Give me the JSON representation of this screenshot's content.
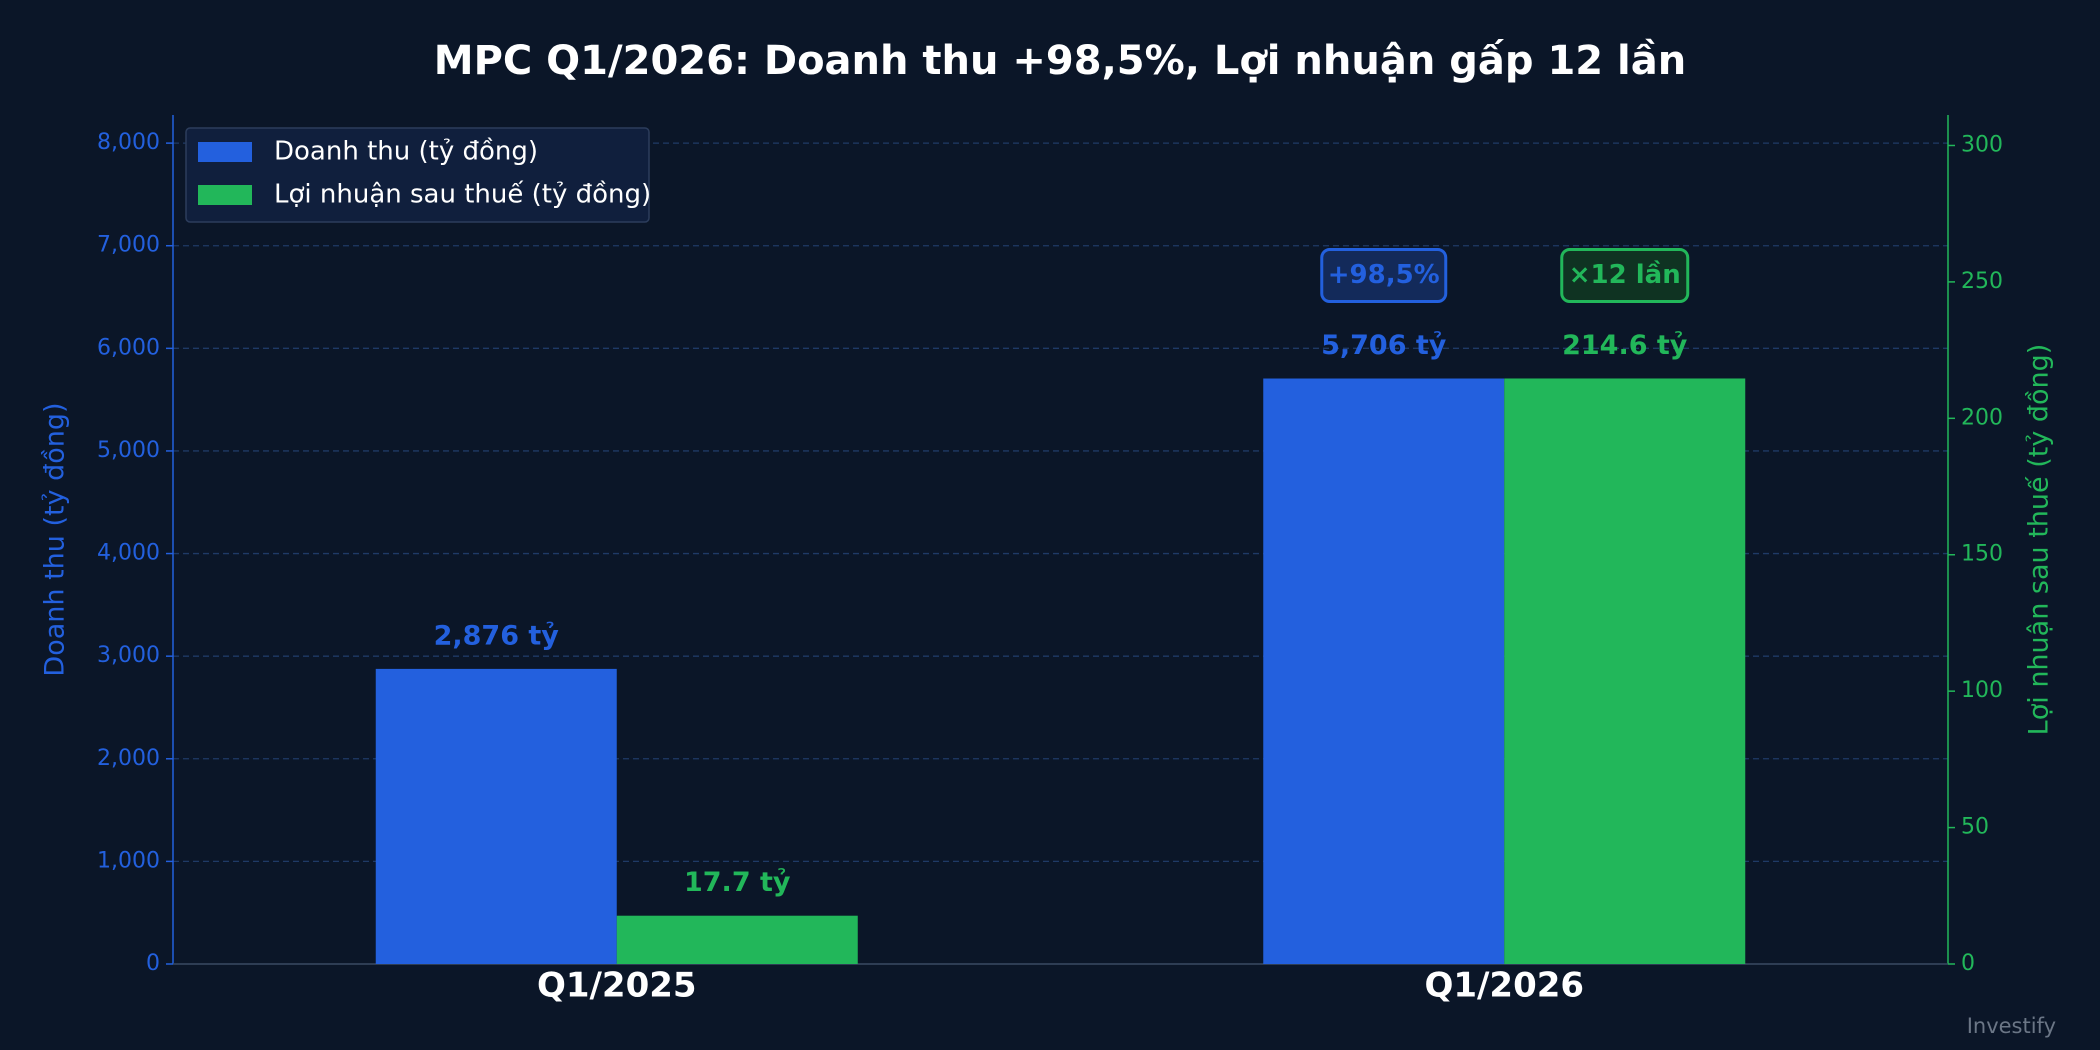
{
  "chart_data": {
    "type": "bar",
    "title": "MPC Q1/2026: Doanh thu +98,5%, Lợi nhuận gấp 12 lần",
    "categories": [
      "Q1/2025",
      "Q1/2026"
    ],
    "series": [
      {
        "name": "Doanh thu (tỷ đồng)",
        "color": "#2360de",
        "axis": "y",
        "values": [
          2876,
          5706
        ],
        "value_labels": [
          "2,876 tỷ",
          "5,706 tỷ"
        ]
      },
      {
        "name": "Lợi nhuận sau thuế (tỷ đồng)",
        "color": "#22b75a",
        "axis": "y2",
        "values": [
          17.7,
          214.6
        ],
        "value_labels": [
          "17.7 tỷ",
          "214.6 tỷ"
        ]
      }
    ],
    "ylabel": "Doanh thu (tỷ đồng)",
    "y2label": "Lợi nhuận sau thuế (tỷ đồng)",
    "ylim": [
      0,
      8274
    ],
    "yticks": [
      0,
      {
        "value": 1000,
        "label": "1,000"
      },
      {
        "value": 2000,
        "label": "2,000"
      },
      {
        "value": 3000,
        "label": "3,000"
      },
      {
        "value": 4000,
        "label": "4,000"
      },
      {
        "value": 5000,
        "label": "5,000"
      },
      {
        "value": 6000,
        "label": "6,000"
      },
      {
        "value": 7000,
        "label": "7,000"
      },
      {
        "value": 8000,
        "label": "8,000"
      }
    ],
    "y2lim": [
      0,
      311.17
    ],
    "y2ticks": [
      0,
      50,
      100,
      150,
      200,
      250,
      300
    ],
    "annotations": [
      "+98,5%",
      "×12 lần"
    ],
    "grid": true,
    "legend": "upper-left",
    "watermark": "Investify"
  }
}
